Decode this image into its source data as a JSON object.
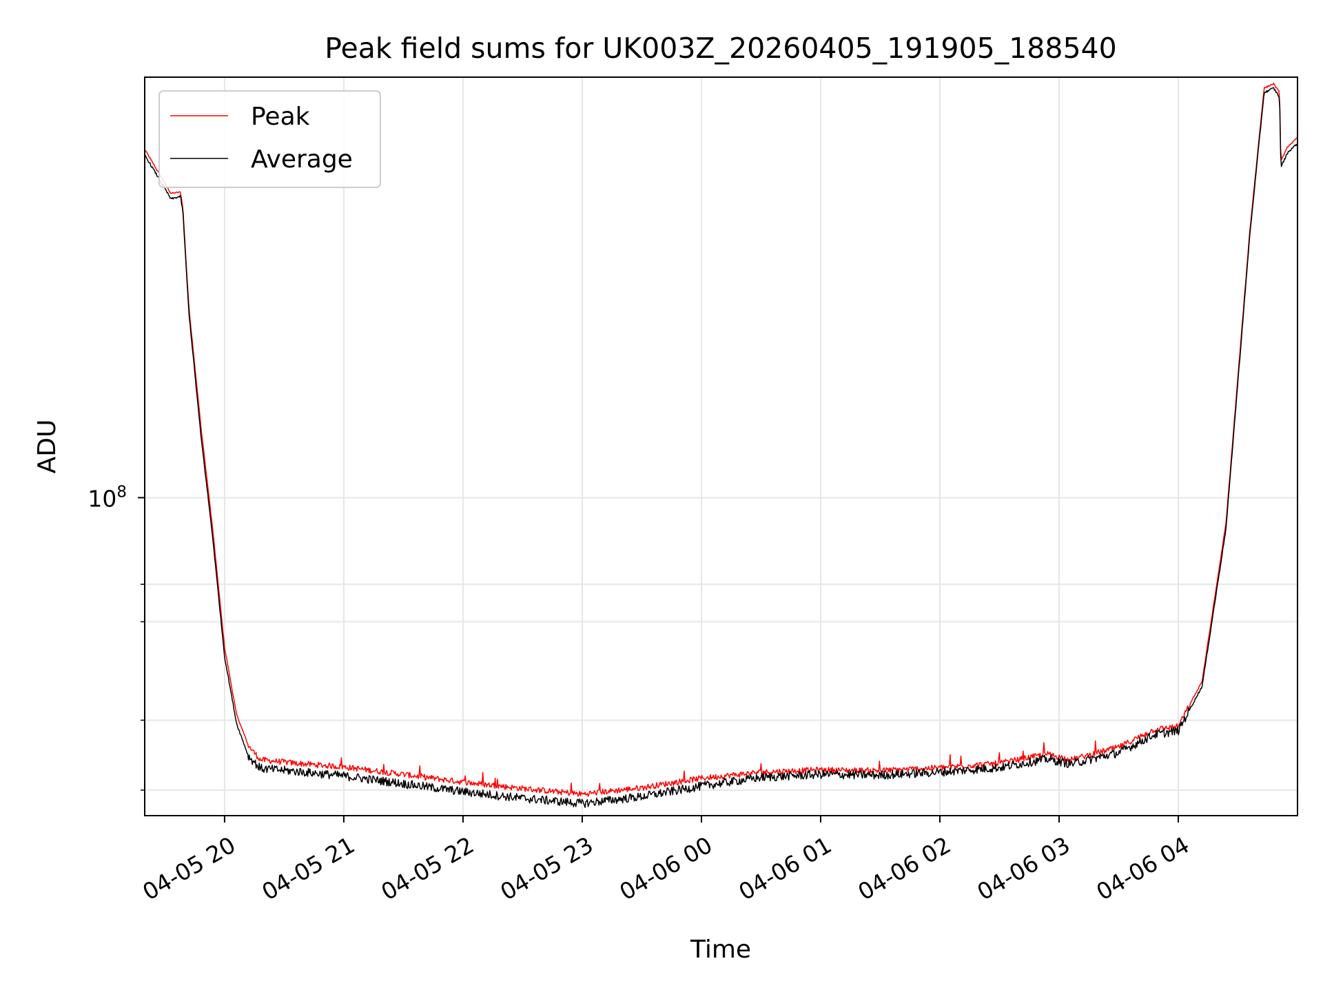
{
  "chart_data": {
    "type": "line",
    "title": "Peak field sums for UK003Z_20260405_191905_188540",
    "xlabel": "Time",
    "ylabel": "ADU",
    "yscale": "log",
    "grid": true,
    "legend_position": "top-left",
    "x_range_hours": [
      19.33,
      29.0
    ],
    "ylim": [
      27000000,
      565000000
    ],
    "x_ticks": [
      {
        "hour": 20,
        "label": "04-05 20"
      },
      {
        "hour": 21,
        "label": "04-05 21"
      },
      {
        "hour": 22,
        "label": "04-05 22"
      },
      {
        "hour": 23,
        "label": "04-05 23"
      },
      {
        "hour": 24,
        "label": "04-06 00"
      },
      {
        "hour": 25,
        "label": "04-06 01"
      },
      {
        "hour": 26,
        "label": "04-06 02"
      },
      {
        "hour": 27,
        "label": "04-06 03"
      },
      {
        "hour": 28,
        "label": "04-06 04"
      }
    ],
    "y_major_ticks": [
      {
        "value": 100000000,
        "base": "10",
        "exp": "8"
      }
    ],
    "y_minor_ticks": [
      30000000,
      40000000,
      60000000,
      70000000
    ],
    "series": [
      {
        "name": "Peak",
        "color": "#ff0000",
        "points": [
          [
            19.33,
            420000000
          ],
          [
            19.45,
            380000000
          ],
          [
            19.55,
            350000000
          ],
          [
            19.63,
            352000000
          ],
          [
            19.65,
            330000000
          ],
          [
            19.7,
            220000000
          ],
          [
            19.8,
            135000000
          ],
          [
            19.9,
            88000000
          ],
          [
            20.0,
            54000000
          ],
          [
            20.1,
            41000000
          ],
          [
            20.2,
            36000000
          ],
          [
            20.3,
            34000000
          ],
          [
            20.6,
            33500000
          ],
          [
            21.0,
            33000000
          ],
          [
            21.5,
            32000000
          ],
          [
            22.0,
            31000000
          ],
          [
            22.5,
            30200000
          ],
          [
            23.0,
            29500000
          ],
          [
            23.5,
            30300000
          ],
          [
            24.0,
            31500000
          ],
          [
            24.5,
            32300000
          ],
          [
            25.0,
            32600000
          ],
          [
            25.5,
            32500000
          ],
          [
            26.0,
            32900000
          ],
          [
            26.5,
            33500000
          ],
          [
            26.9,
            34800000
          ],
          [
            27.1,
            34000000
          ],
          [
            27.5,
            35800000
          ],
          [
            27.8,
            38500000
          ],
          [
            28.0,
            39000000
          ],
          [
            28.2,
            47000000
          ],
          [
            28.4,
            90000000
          ],
          [
            28.6,
            300000000
          ],
          [
            28.72,
            540000000
          ],
          [
            28.8,
            550000000
          ],
          [
            28.85,
            530000000
          ],
          [
            28.86,
            400000000
          ],
          [
            28.92,
            425000000
          ],
          [
            29.0,
            440000000
          ]
        ]
      },
      {
        "name": "Average",
        "color": "#000000",
        "points": [
          [
            19.33,
            410000000
          ],
          [
            19.45,
            372000000
          ],
          [
            19.55,
            342000000
          ],
          [
            19.63,
            346000000
          ],
          [
            19.65,
            325000000
          ],
          [
            19.7,
            215000000
          ],
          [
            19.8,
            130000000
          ],
          [
            19.9,
            85000000
          ],
          [
            20.0,
            52000000
          ],
          [
            20.1,
            39500000
          ],
          [
            20.2,
            34500000
          ],
          [
            20.3,
            32800000
          ],
          [
            20.6,
            32400000
          ],
          [
            21.0,
            31800000
          ],
          [
            21.5,
            30800000
          ],
          [
            22.0,
            29800000
          ],
          [
            22.5,
            29000000
          ],
          [
            23.0,
            28400000
          ],
          [
            23.5,
            29200000
          ],
          [
            24.0,
            30500000
          ],
          [
            24.5,
            31600000
          ],
          [
            25.0,
            32000000
          ],
          [
            25.5,
            31900000
          ],
          [
            26.0,
            32300000
          ],
          [
            26.5,
            32900000
          ],
          [
            26.9,
            34100000
          ],
          [
            27.1,
            33400000
          ],
          [
            27.5,
            35000000
          ],
          [
            27.8,
            37700000
          ],
          [
            28.0,
            38300000
          ],
          [
            28.2,
            46000000
          ],
          [
            28.4,
            88000000
          ],
          [
            28.6,
            295000000
          ],
          [
            28.72,
            530000000
          ],
          [
            28.8,
            540000000
          ],
          [
            28.85,
            520000000
          ],
          [
            28.86,
            390000000
          ],
          [
            28.92,
            415000000
          ],
          [
            29.0,
            430000000
          ]
        ]
      }
    ]
  }
}
